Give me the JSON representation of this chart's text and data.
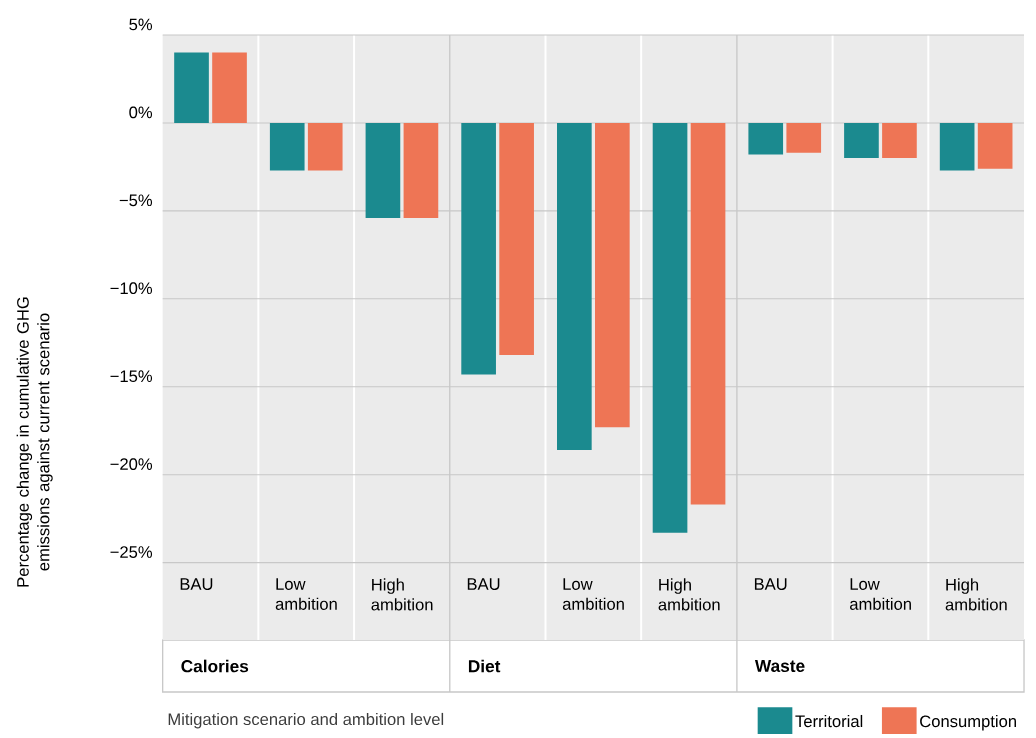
{
  "chart_data": {
    "type": "bar",
    "xlabel": "Mitigation scenario and ambition level",
    "ylabel": "Percentage change in cumulative GHG emissions against current scenario",
    "categories": [
      "BAU",
      "Low ambition",
      "High ambition",
      "BAU",
      "Low ambition",
      "High ambition",
      "BAU",
      "Low ambition",
      "High ambition"
    ],
    "series": [
      {
        "name": "Territorial",
        "color": "#1b8a8f",
        "values": [
          4.0,
          -2.7,
          -5.4,
          -14.3,
          -18.6,
          -23.3,
          -1.8,
          -2.0,
          -2.7
        ]
      },
      {
        "name": "Consumption",
        "color": "#ee7555",
        "values": [
          4.0,
          -2.7,
          -5.4,
          -13.2,
          -17.3,
          -21.7,
          -1.7,
          -2.0,
          -2.6
        ]
      }
    ],
    "ylim": [
      -29.4,
      5
    ],
    "yticks": [
      {
        "value": 5,
        "label": "5%"
      },
      {
        "value": 0,
        "label": "0%"
      },
      {
        "value": -5,
        "label": "−5%"
      },
      {
        "value": -10,
        "label": "−10%"
      },
      {
        "value": -15,
        "label": "−15%"
      },
      {
        "value": -20,
        "label": "−20%"
      },
      {
        "value": -25,
        "label": "−25%"
      }
    ],
    "grid": true,
    "legend": "bottom right",
    "annotations": [
      "Calories",
      "Diet",
      "Waste"
    ]
  }
}
